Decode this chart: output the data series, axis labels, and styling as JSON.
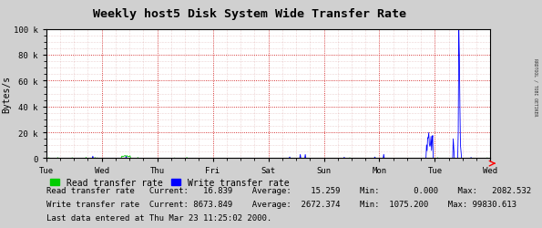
{
  "title": "Weekly host5 Disk System Wide Transfer Rate",
  "ylabel": "Bytes/s",
  "ylim": [
    0,
    100000
  ],
  "yticks": [
    0,
    20000,
    40000,
    60000,
    80000,
    100000
  ],
  "ytick_labels": [
    "0",
    "20 k",
    "40 k",
    "60 k",
    "80 k",
    "100 k"
  ],
  "x_day_labels": [
    "Tue",
    "Wed",
    "Thu",
    "Fri",
    "Sat",
    "Sun",
    "Mon",
    "Tue",
    "Wed"
  ],
  "bg_color": "#d0d0d0",
  "plot_bg_color": "#ffffff",
  "grid_color_major": "#cc0000",
  "grid_color_minor": "#cc8888",
  "read_color": "#00cc00",
  "write_color": "#0000ff",
  "legend_read": "Read transfer rate",
  "legend_write": "Write transfer rate",
  "stats_read_current": "16.839",
  "stats_read_average": "15.259",
  "stats_read_min": "0.000",
  "stats_read_max": "2082.532",
  "stats_write_current": "8673.849",
  "stats_write_average": "2672.374",
  "stats_write_min": "1075.200",
  "stats_write_max": "99830.613",
  "last_data": "Last data entered at Thu Mar 23 11:25:02 2000.",
  "sidebar_text": "RRDTOOL / TOBI OETIKER",
  "n_points": 800
}
